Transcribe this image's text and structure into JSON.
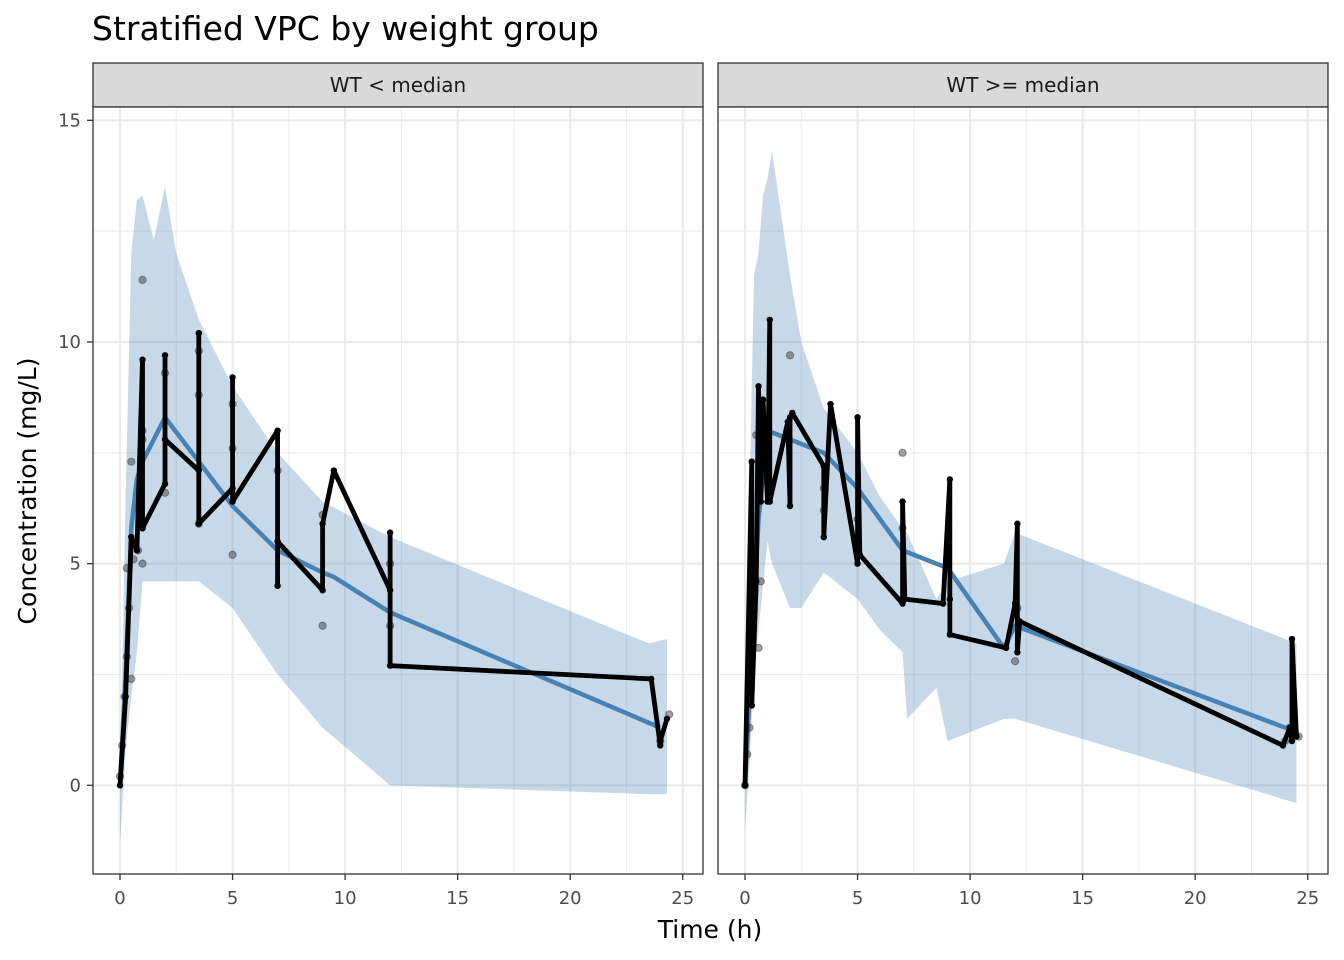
{
  "chart_data": {
    "type": "line",
    "title": "Stratified VPC by weight group",
    "xlabel": "Time (h)",
    "ylabel": "Concentration (mg/L)",
    "xlim": [
      -1.2,
      25.9
    ],
    "ylim": [
      -2.0,
      15.3
    ],
    "x_ticks": [
      0,
      5,
      10,
      15,
      20,
      25
    ],
    "y_ticks": [
      0,
      5,
      10,
      15
    ],
    "x_tick_labels": [
      "0",
      "5",
      "10",
      "15",
      "20",
      "25"
    ],
    "y_tick_labels": [
      "0",
      "5",
      "10",
      "15"
    ],
    "grid": true,
    "legend": "none",
    "colors": {
      "ribbon": "#4682B4",
      "median_line": "#4682B4",
      "observed_line": "#000000",
      "observed_points": "#000000",
      "strip_fill": "#D9D9D9",
      "panel_border": "#333333",
      "grid": "#EBEBEB"
    },
    "panels": [
      {
        "strip_label": "WT < median",
        "ribbon_x": [
          0,
          0.25,
          0.5,
          0.75,
          1.0,
          1.5,
          2.0,
          2.5,
          3.5,
          5.0,
          7.0,
          9.0,
          12.0,
          23.5,
          24.3
        ],
        "ribbon_lower": [
          -1.3,
          0.8,
          2.0,
          3.0,
          4.6,
          4.6,
          4.6,
          4.6,
          4.6,
          4.0,
          2.5,
          1.3,
          0.0,
          -0.2,
          -0.2
        ],
        "ribbon_upper": [
          0.3,
          6.5,
          12.0,
          13.2,
          13.3,
          12.3,
          13.5,
          12.0,
          10.5,
          9.0,
          7.5,
          6.4,
          5.6,
          3.2,
          3.3
        ],
        "median_x": [
          0,
          0.25,
          0.5,
          0.75,
          1.0,
          2.0,
          3.5,
          5.0,
          7.0,
          9.0,
          9.5,
          12.0,
          24.0
        ],
        "median_y": [
          0.0,
          2.5,
          5.8,
          6.9,
          7.3,
          8.3,
          7.3,
          6.3,
          5.3,
          4.8,
          4.7,
          3.9,
          1.3
        ],
        "observed_x": [
          0,
          0.25,
          0.5,
          0.75,
          1.0,
          1.0,
          1.0,
          2.0,
          2.0,
          2.0,
          3.5,
          3.5,
          3.5,
          5.0,
          5.0,
          5.0,
          7.0,
          7.0,
          7.0,
          9.0,
          9.0,
          9.5,
          12.0,
          12.0,
          12.0,
          23.6,
          24.0,
          24.0,
          24.3
        ],
        "observed_y": [
          0.0,
          2.0,
          5.6,
          5.3,
          9.6,
          5.8,
          5.8,
          6.8,
          9.7,
          7.8,
          7.1,
          10.2,
          5.9,
          6.7,
          9.2,
          6.4,
          8.0,
          4.5,
          5.5,
          4.4,
          5.9,
          7.1,
          4.4,
          5.7,
          2.7,
          2.4,
          0.9,
          1.0,
          1.5
        ],
        "scatter_x": [
          0,
          0.1,
          0.2,
          0.3,
          0.3,
          0.4,
          0.5,
          0.5,
          0.6,
          0.8,
          1.0,
          1.0,
          1.0,
          1.0,
          2.0,
          2.0,
          3.5,
          3.5,
          3.5,
          5.0,
          5.0,
          5.0,
          7.0,
          9.0,
          9.0,
          12.0,
          12.0,
          24.0,
          24.4
        ],
        "scatter_y": [
          0.2,
          0.9,
          2.0,
          4.9,
          2.9,
          4.0,
          7.3,
          2.4,
          5.1,
          5.3,
          11.4,
          8.0,
          7.8,
          5.0,
          9.3,
          6.6,
          9.8,
          8.8,
          5.9,
          7.6,
          5.2,
          8.6,
          7.1,
          3.6,
          6.1,
          3.6,
          5.0,
          1.0,
          1.6
        ]
      },
      {
        "strip_label": "WT >= median",
        "ribbon_x": [
          0,
          0.2,
          0.4,
          0.6,
          0.8,
          1.0,
          1.2,
          2.0,
          2.5,
          3.5,
          5.0,
          6.0,
          7.0,
          7.2,
          8.5,
          9.0,
          11.5,
          12.0,
          24.5
        ],
        "ribbon_lower": [
          -1.0,
          0.5,
          2.5,
          3.5,
          4.5,
          5.5,
          5.0,
          4.0,
          4.0,
          4.8,
          4.2,
          3.5,
          3.0,
          1.5,
          2.2,
          1.0,
          1.5,
          1.5,
          -0.4
        ],
        "ribbon_upper": [
          0.3,
          6.5,
          11.5,
          12.0,
          13.3,
          13.7,
          14.3,
          11.5,
          10.0,
          8.5,
          7.5,
          6.5,
          5.8,
          5.7,
          4.2,
          4.6,
          5.0,
          5.7,
          3.2
        ],
        "median_x": [
          0,
          0.3,
          0.6,
          1.0,
          2.0,
          3.5,
          5.0,
          7.0,
          9.0,
          11.5,
          12.0,
          24.0,
          24.5
        ],
        "median_y": [
          0.0,
          3.0,
          6.0,
          8.0,
          7.8,
          7.5,
          6.7,
          5.3,
          4.9,
          3.1,
          3.6,
          1.3,
          1.4
        ],
        "observed_x": [
          0,
          0.3,
          0.3,
          0.5,
          0.6,
          0.7,
          0.8,
          1.0,
          1.1,
          1.1,
          1.9,
          2.0,
          2.0,
          2.1,
          3.5,
          3.5,
          3.8,
          5.0,
          5.0,
          5.1,
          7.0,
          7.0,
          7.1,
          8.8,
          9.1,
          9.1,
          9.1,
          11.6,
          12.0,
          12.1,
          12.1,
          12.2,
          23.9,
          24.2,
          24.3,
          24.3,
          24.5
        ],
        "observed_y": [
          0.0,
          7.3,
          1.8,
          4.6,
          9.0,
          6.4,
          8.7,
          6.4,
          10.5,
          6.4,
          8.2,
          6.3,
          8.3,
          8.4,
          7.2,
          5.6,
          8.6,
          5.0,
          8.3,
          5.2,
          4.1,
          6.4,
          4.2,
          4.1,
          6.9,
          4.2,
          3.4,
          3.1,
          4.1,
          5.9,
          3.0,
          3.7,
          0.9,
          1.3,
          1.0,
          3.3,
          1.1
        ],
        "scatter_x": [
          0,
          0.1,
          0.2,
          0.3,
          0.4,
          0.5,
          0.6,
          0.7,
          2.0,
          3.5,
          3.5,
          5.0,
          5.0,
          7.0,
          7.0,
          12.0,
          12.1,
          24.0,
          24.2,
          24.6
        ],
        "scatter_y": [
          0.0,
          0.7,
          1.3,
          2.9,
          4.4,
          7.9,
          3.1,
          4.6,
          9.7,
          6.7,
          6.2,
          6.0,
          5.5,
          7.5,
          5.8,
          2.8,
          4.0,
          1.0,
          1.2,
          1.1
        ]
      }
    ]
  }
}
